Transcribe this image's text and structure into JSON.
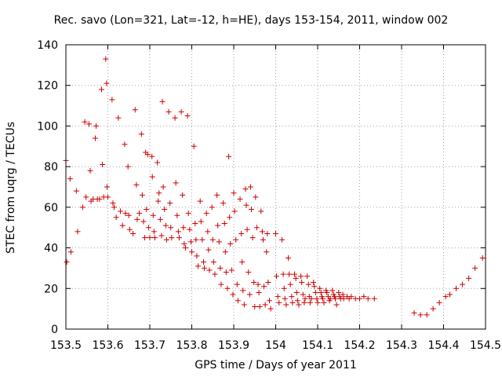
{
  "chart_data": {
    "type": "scatter",
    "title": "Rec. savo (Lon=321, Lat=-12, h=HE), days 153-154, 2011, window 002",
    "xlabel": "GPS time / Days of year 2011",
    "ylabel": "STEC from uqrg / TECUs",
    "xlim": [
      153.5,
      154.5
    ],
    "ylim": [
      0,
      140
    ],
    "xticks": [
      "153.5",
      "153.6",
      "153.7",
      "153.8",
      "153.9",
      "154",
      "154.1",
      "154.2",
      "154.3",
      "154.4",
      "154.5"
    ],
    "yticks": [
      "0",
      "20",
      "40",
      "60",
      "80",
      "100",
      "120",
      "140"
    ],
    "grid": "dotted",
    "legend": "none",
    "marker": "+",
    "color": "#cc0000",
    "points": [
      [
        153.5,
        83
      ],
      [
        153.502,
        33
      ],
      [
        153.51,
        74
      ],
      [
        153.512,
        38
      ],
      [
        153.525,
        68
      ],
      [
        153.528,
        48
      ],
      [
        153.54,
        60
      ],
      [
        153.545,
        102
      ],
      [
        153.548,
        65
      ],
      [
        153.555,
        101
      ],
      [
        153.558,
        78
      ],
      [
        153.56,
        63
      ],
      [
        153.565,
        64
      ],
      [
        153.57,
        94
      ],
      [
        153.572,
        100
      ],
      [
        153.575,
        64
      ],
      [
        153.58,
        64
      ],
      [
        153.585,
        118
      ],
      [
        153.587,
        81
      ],
      [
        153.59,
        65
      ],
      [
        153.595,
        133
      ],
      [
        153.597,
        121
      ],
      [
        153.598,
        70
      ],
      [
        153.6,
        65
      ],
      [
        153.61,
        113
      ],
      [
        153.612,
        62
      ],
      [
        153.615,
        60
      ],
      [
        153.62,
        55
      ],
      [
        153.625,
        104
      ],
      [
        153.63,
        58
      ],
      [
        153.635,
        51
      ],
      [
        153.64,
        91
      ],
      [
        153.642,
        57
      ],
      [
        153.648,
        80
      ],
      [
        153.65,
        56
      ],
      [
        153.652,
        49
      ],
      [
        153.66,
        47
      ],
      [
        153.665,
        108
      ],
      [
        153.668,
        71
      ],
      [
        153.67,
        54
      ],
      [
        153.675,
        57
      ],
      [
        153.68,
        96
      ],
      [
        153.682,
        66
      ],
      [
        153.685,
        53
      ],
      [
        153.688,
        45
      ],
      [
        153.69,
        87
      ],
      [
        153.692,
        59
      ],
      [
        153.695,
        86
      ],
      [
        153.697,
        50
      ],
      [
        153.7,
        45
      ],
      [
        153.705,
        85
      ],
      [
        153.706,
        75
      ],
      [
        153.708,
        56
      ],
      [
        153.71,
        48
      ],
      [
        153.712,
        45
      ],
      [
        153.718,
        82
      ],
      [
        153.72,
        63
      ],
      [
        153.722,
        67
      ],
      [
        153.725,
        54
      ],
      [
        153.728,
        46
      ],
      [
        153.73,
        112
      ],
      [
        153.732,
        70
      ],
      [
        153.735,
        59
      ],
      [
        153.738,
        51
      ],
      [
        153.74,
        44
      ],
      [
        153.745,
        107
      ],
      [
        153.748,
        62
      ],
      [
        153.75,
        50
      ],
      [
        153.752,
        45
      ],
      [
        153.76,
        104
      ],
      [
        153.762,
        72
      ],
      [
        153.765,
        56
      ],
      [
        153.768,
        48
      ],
      [
        153.77,
        45
      ],
      [
        153.775,
        107
      ],
      [
        153.778,
        66
      ],
      [
        153.78,
        50
      ],
      [
        153.782,
        42
      ],
      [
        153.785,
        40
      ],
      [
        153.79,
        105
      ],
      [
        153.792,
        57
      ],
      [
        153.795,
        49
      ],
      [
        153.798,
        43
      ],
      [
        153.8,
        38
      ],
      [
        153.805,
        90
      ],
      [
        153.808,
        52
      ],
      [
        153.81,
        44
      ],
      [
        153.812,
        36
      ],
      [
        153.815,
        31
      ],
      [
        153.82,
        63
      ],
      [
        153.822,
        53
      ],
      [
        153.825,
        44
      ],
      [
        153.828,
        33
      ],
      [
        153.83,
        30
      ],
      [
        153.835,
        57
      ],
      [
        153.838,
        48
      ],
      [
        153.84,
        39
      ],
      [
        153.842,
        29
      ],
      [
        153.848,
        60
      ],
      [
        153.85,
        44
      ],
      [
        153.852,
        33
      ],
      [
        153.855,
        27
      ],
      [
        153.86,
        66
      ],
      [
        153.862,
        51
      ],
      [
        153.865,
        43
      ],
      [
        153.868,
        30
      ],
      [
        153.87,
        22
      ],
      [
        153.875,
        62
      ],
      [
        153.878,
        52
      ],
      [
        153.88,
        38
      ],
      [
        153.882,
        28
      ],
      [
        153.885,
        20
      ],
      [
        153.888,
        85
      ],
      [
        153.89,
        55
      ],
      [
        153.892,
        42
      ],
      [
        153.895,
        29
      ],
      [
        153.898,
        17
      ],
      [
        153.9,
        67
      ],
      [
        153.902,
        58
      ],
      [
        153.905,
        44
      ],
      [
        153.908,
        22
      ],
      [
        153.91,
        14
      ],
      [
        153.915,
        64
      ],
      [
        153.918,
        47
      ],
      [
        153.92,
        33
      ],
      [
        153.922,
        19
      ],
      [
        153.925,
        12
      ],
      [
        153.928,
        69
      ],
      [
        153.93,
        61
      ],
      [
        153.932,
        49
      ],
      [
        153.935,
        28
      ],
      [
        153.938,
        17
      ],
      [
        153.94,
        70
      ],
      [
        153.942,
        59
      ],
      [
        153.945,
        45
      ],
      [
        153.948,
        23
      ],
      [
        153.95,
        11
      ],
      [
        153.952,
        65
      ],
      [
        153.955,
        50
      ],
      [
        153.958,
        22
      ],
      [
        153.96,
        18
      ],
      [
        153.962,
        11
      ],
      [
        153.965,
        58
      ],
      [
        153.968,
        48
      ],
      [
        153.97,
        44
      ],
      [
        153.972,
        21
      ],
      [
        153.975,
        12
      ],
      [
        153.978,
        38
      ],
      [
        153.98,
        47
      ],
      [
        153.982,
        23
      ],
      [
        153.985,
        14
      ],
      [
        153.988,
        10
      ],
      [
        154.0,
        47
      ],
      [
        154.002,
        26
      ],
      [
        154.005,
        16
      ],
      [
        154.008,
        13
      ],
      [
        154.015,
        44
      ],
      [
        154.018,
        27
      ],
      [
        154.02,
        20
      ],
      [
        154.022,
        15
      ],
      [
        154.025,
        12
      ],
      [
        154.03,
        35
      ],
      [
        154.032,
        27
      ],
      [
        154.035,
        22
      ],
      [
        154.038,
        16
      ],
      [
        154.04,
        13
      ],
      [
        154.045,
        27
      ],
      [
        154.048,
        25
      ],
      [
        154.05,
        18
      ],
      [
        154.052,
        14
      ],
      [
        154.055,
        12
      ],
      [
        154.06,
        26
      ],
      [
        154.062,
        23
      ],
      [
        154.065,
        17
      ],
      [
        154.068,
        13
      ],
      [
        154.07,
        15
      ],
      [
        154.075,
        26
      ],
      [
        154.078,
        22
      ],
      [
        154.08,
        16
      ],
      [
        154.082,
        13
      ],
      [
        154.085,
        15
      ],
      [
        154.09,
        23
      ],
      [
        154.092,
        21
      ],
      [
        154.095,
        18
      ],
      [
        154.098,
        15
      ],
      [
        154.1,
        13
      ],
      [
        154.105,
        20
      ],
      [
        154.108,
        18
      ],
      [
        154.11,
        16
      ],
      [
        154.112,
        15
      ],
      [
        154.115,
        13
      ],
      [
        154.12,
        19
      ],
      [
        154.122,
        18
      ],
      [
        154.125,
        16
      ],
      [
        154.128,
        14
      ],
      [
        154.13,
        15
      ],
      [
        154.135,
        19
      ],
      [
        154.138,
        17
      ],
      [
        154.14,
        16
      ],
      [
        154.142,
        15
      ],
      [
        154.145,
        12
      ],
      [
        154.15,
        18
      ],
      [
        154.152,
        16
      ],
      [
        154.155,
        15
      ],
      [
        154.16,
        17
      ],
      [
        154.162,
        15
      ],
      [
        154.17,
        16
      ],
      [
        154.175,
        15
      ],
      [
        154.18,
        16
      ],
      [
        154.19,
        15
      ],
      [
        154.2,
        15
      ],
      [
        154.21,
        16
      ],
      [
        154.22,
        15
      ],
      [
        154.235,
        15
      ],
      [
        154.33,
        8
      ],
      [
        154.345,
        7
      ],
      [
        154.36,
        7
      ],
      [
        154.375,
        10
      ],
      [
        154.39,
        13
      ],
      [
        154.405,
        16
      ],
      [
        154.415,
        17
      ],
      [
        154.43,
        20
      ],
      [
        154.445,
        22
      ],
      [
        154.46,
        25
      ],
      [
        154.475,
        30
      ],
      [
        154.493,
        35
      ]
    ]
  }
}
